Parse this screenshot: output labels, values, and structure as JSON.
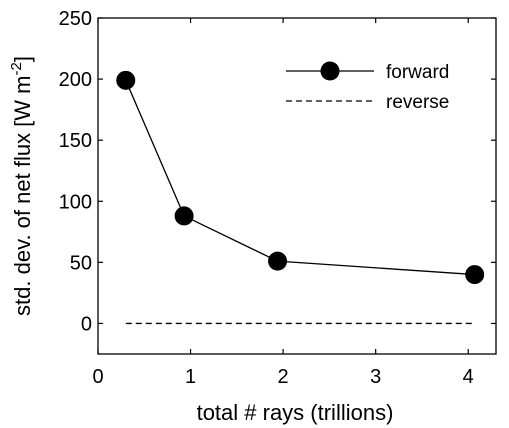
{
  "chart_data": {
    "type": "line",
    "title": "",
    "xlabel": "total # rays (trillions)",
    "ylabel": "std. dev. of net flux [W m",
    "ylabel_sup": "-2",
    "ylabel_close": "]",
    "xlim": [
      0,
      4.3
    ],
    "ylim": [
      -25,
      250
    ],
    "xticks": [
      0,
      1,
      2,
      3,
      4
    ],
    "yticks": [
      0,
      50,
      100,
      150,
      200,
      250
    ],
    "grid": false,
    "legend_position": "top-right",
    "series": [
      {
        "name": "forward",
        "style": "solid-line-with-filled-circle-markers",
        "color": "#000000",
        "x": [
          0.3,
          0.93,
          1.94,
          4.07
        ],
        "y": [
          199,
          88,
          51,
          40
        ]
      },
      {
        "name": "reverse",
        "style": "dashed-line",
        "color": "#000000",
        "x": [
          0.3,
          4.07
        ],
        "y": [
          0,
          0
        ]
      }
    ]
  }
}
